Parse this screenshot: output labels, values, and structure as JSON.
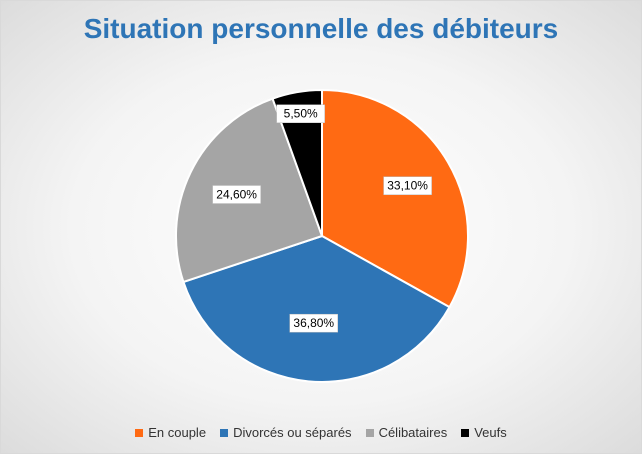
{
  "chart_data": {
    "type": "pie",
    "title": "Situation personnelle des débiteurs",
    "categories": [
      "En couple",
      "Divorcés ou séparés",
      "Célibataires",
      "Veufs"
    ],
    "values": [
      33.1,
      36.8,
      24.6,
      5.5
    ],
    "labels": [
      "33,10%",
      "36,80%",
      "24,60%",
      "5,50%"
    ],
    "colors": [
      "#ff6a13",
      "#2e75b6",
      "#a5a5a5",
      "#000000"
    ],
    "start_angle_deg": 0,
    "direction": "clockwise",
    "legend_position": "bottom"
  }
}
